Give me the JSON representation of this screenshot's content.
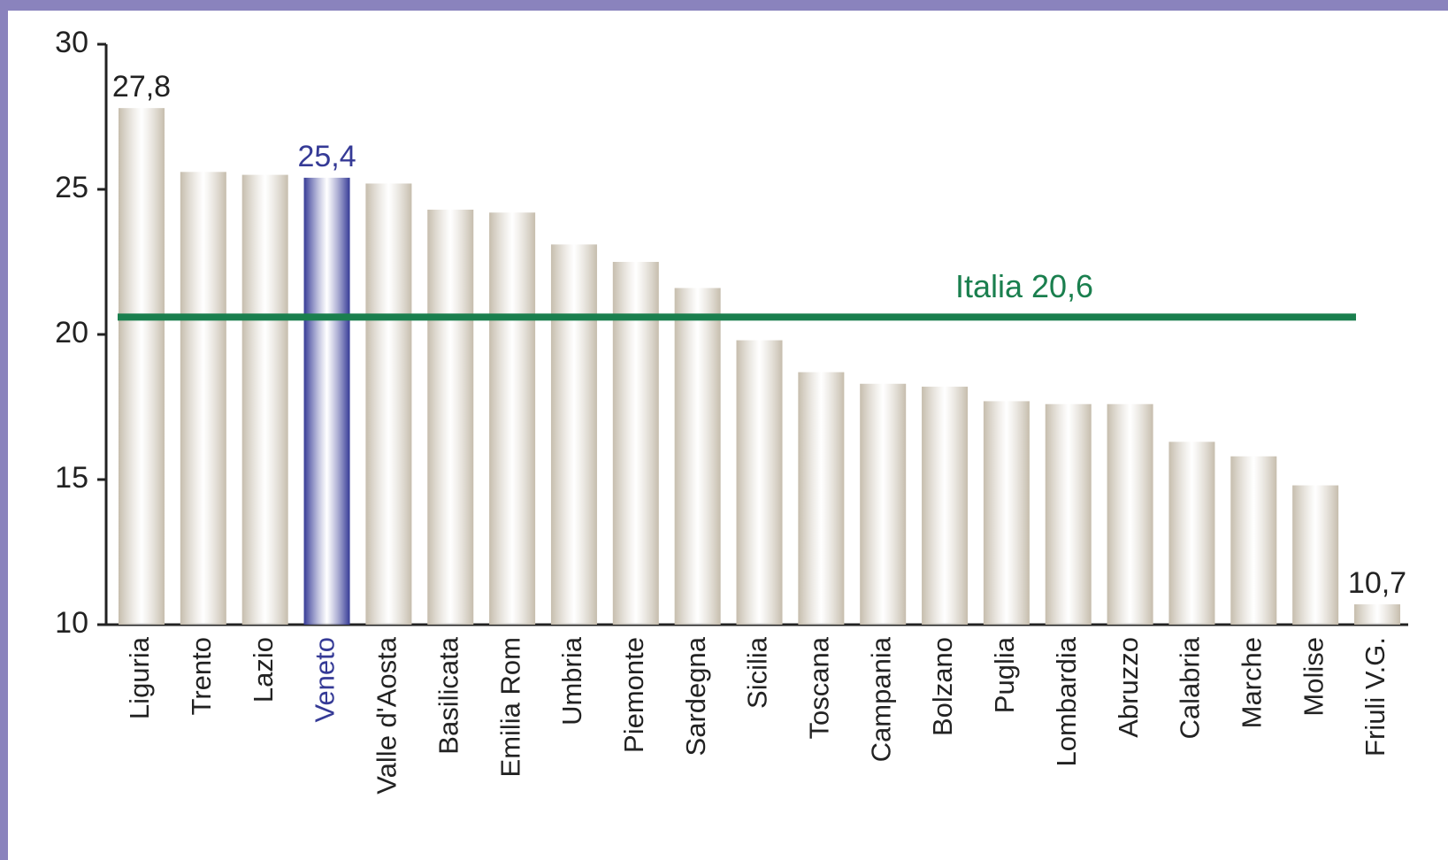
{
  "chart_data": {
    "type": "bar",
    "categories": [
      "Liguria",
      "Trento",
      "Lazio",
      "Veneto",
      "Valle d'Aosta",
      "Basilicata",
      "Emilia Rom",
      "Umbria",
      "Piemonte",
      "Sardegna",
      "Sicilia",
      "Toscana",
      "Campania",
      "Bolzano",
      "Puglia",
      "Lombardia",
      "Abruzzo",
      "Calabria",
      "Marche",
      "Molise",
      "Friuli V.G."
    ],
    "values": [
      27.8,
      25.6,
      25.5,
      25.4,
      25.2,
      24.3,
      24.2,
      23.1,
      22.5,
      21.6,
      19.8,
      18.7,
      18.3,
      18.2,
      17.7,
      17.6,
      17.6,
      16.3,
      15.8,
      14.8,
      10.7
    ],
    "value_labels": [
      "27,8",
      null,
      null,
      "25,4",
      null,
      null,
      null,
      null,
      null,
      null,
      null,
      null,
      null,
      null,
      null,
      null,
      null,
      null,
      null,
      null,
      "10,7"
    ],
    "colors": [
      "#c6bdad",
      "#c6bdad",
      "#c6bdad",
      "#353a96",
      "#c6bdad",
      "#c6bdad",
      "#c6bdad",
      "#c6bdad",
      "#c6bdad",
      "#c6bdad",
      "#c6bdad",
      "#c6bdad",
      "#c6bdad",
      "#c6bdad",
      "#c6bdad",
      "#c6bdad",
      "#c6bdad",
      "#c6bdad",
      "#c6bdad",
      "#c6bdad",
      "#c6bdad"
    ],
    "reference_line": {
      "value": 20.6,
      "label": "Italia 20,6",
      "color": "#1a7f4e"
    },
    "ylim": [
      10,
      30
    ],
    "yticks": [
      10,
      15,
      20,
      25,
      30
    ],
    "grid": false
  }
}
